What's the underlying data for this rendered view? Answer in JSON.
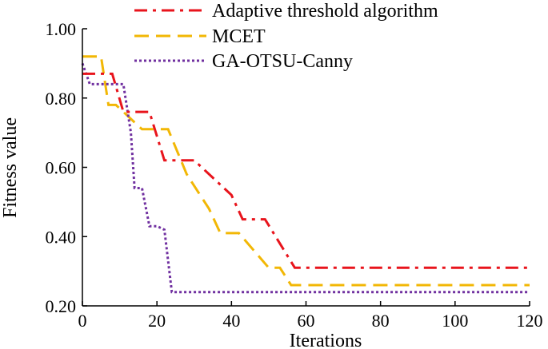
{
  "chart_data": {
    "type": "line",
    "title": "",
    "xlabel": "Iterations",
    "ylabel": "Fitness value",
    "xlim": [
      0,
      120
    ],
    "ylim": [
      0.2,
      1.0
    ],
    "xticks": [
      "0",
      "20",
      "40",
      "60",
      "80",
      "100",
      "120"
    ],
    "yticks": [
      "0.20",
      "0.40",
      "0.60",
      "0.80",
      "1.00"
    ],
    "grid": false,
    "legend_position": "top-right",
    "series": [
      {
        "name": "Adaptive threshold algorithm",
        "color": "#e8141c",
        "style": "dash-dot",
        "points": [
          [
            0,
            0.87
          ],
          [
            8,
            0.87
          ],
          [
            11,
            0.76
          ],
          [
            18,
            0.76
          ],
          [
            22,
            0.62
          ],
          [
            30,
            0.62
          ],
          [
            40,
            0.52
          ],
          [
            43,
            0.45
          ],
          [
            49,
            0.45
          ],
          [
            57,
            0.31
          ],
          [
            120,
            0.31
          ]
        ]
      },
      {
        "name": "MCET",
        "color": "#f2b705",
        "style": "dashed",
        "points": [
          [
            0,
            0.92
          ],
          [
            5,
            0.92
          ],
          [
            7,
            0.78
          ],
          [
            9,
            0.78
          ],
          [
            11,
            0.76
          ],
          [
            16,
            0.71
          ],
          [
            23,
            0.71
          ],
          [
            28,
            0.58
          ],
          [
            34,
            0.48
          ],
          [
            37,
            0.41
          ],
          [
            42,
            0.41
          ],
          [
            50,
            0.31
          ],
          [
            53,
            0.31
          ],
          [
            56,
            0.26
          ],
          [
            120,
            0.26
          ]
        ]
      },
      {
        "name": "GA-OTSU-Canny",
        "color": "#7030a0",
        "style": "dotted",
        "points": [
          [
            0,
            0.9
          ],
          [
            2,
            0.84
          ],
          [
            11,
            0.84
          ],
          [
            13,
            0.7
          ],
          [
            14,
            0.54
          ],
          [
            16,
            0.54
          ],
          [
            18,
            0.43
          ],
          [
            20,
            0.43
          ],
          [
            22,
            0.42
          ],
          [
            24,
            0.24
          ],
          [
            120,
            0.24
          ]
        ]
      }
    ]
  }
}
